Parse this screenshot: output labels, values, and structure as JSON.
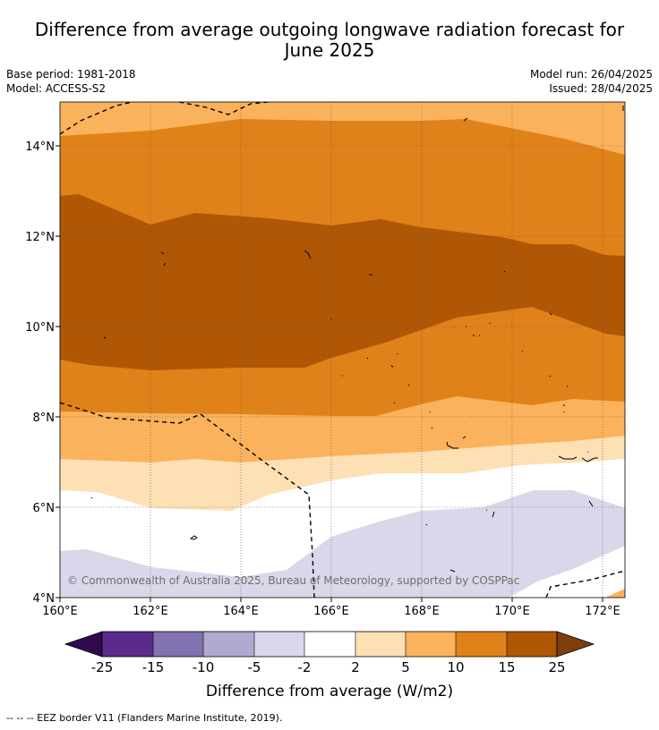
{
  "title": "Difference from average outgoing longwave radiation forecast for June 2025",
  "title_line1": "Difference from average outgoing longwave radiation forecast for",
  "title_line2": "June 2025",
  "meta": {
    "base_period": "Base period: 1981-2018",
    "model": "Model: ACCESS-S2",
    "model_run": "Model run: 26/04/2025",
    "issued": "Issued: 28/04/2025"
  },
  "map": {
    "lon_range": [
      160,
      172.5
    ],
    "lat_range": [
      4,
      15
    ],
    "x_tick_labels": [
      "160°E",
      "162°E",
      "164°E",
      "166°E",
      "168°E",
      "170°E",
      "172°E"
    ],
    "y_tick_labels": [
      "4°N",
      "6°N",
      "8°N",
      "10°N",
      "12°N",
      "14°N"
    ],
    "copyright": "© Commonwealth of Australia 2025, Bureau of Meteorology, supported by COSPPac"
  },
  "colorbar": {
    "tick_labels": [
      "-25",
      "-15",
      "-10",
      "-5",
      "-2",
      "2",
      "5",
      "10",
      "15",
      "25"
    ],
    "colors": [
      "#2f0a4f",
      "#5a2a8c",
      "#8272b0",
      "#b1a9d2",
      "#d8d8ea",
      "#ffffff",
      "#fde0b4",
      "#fbb25c",
      "#e0821a",
      "#b05706",
      "#7f3e0b"
    ],
    "label": "Difference from average (W/m2)"
  },
  "footnote": "--  --  -- EEZ border V11 (Flanders Marine Institute, 2019)."
}
